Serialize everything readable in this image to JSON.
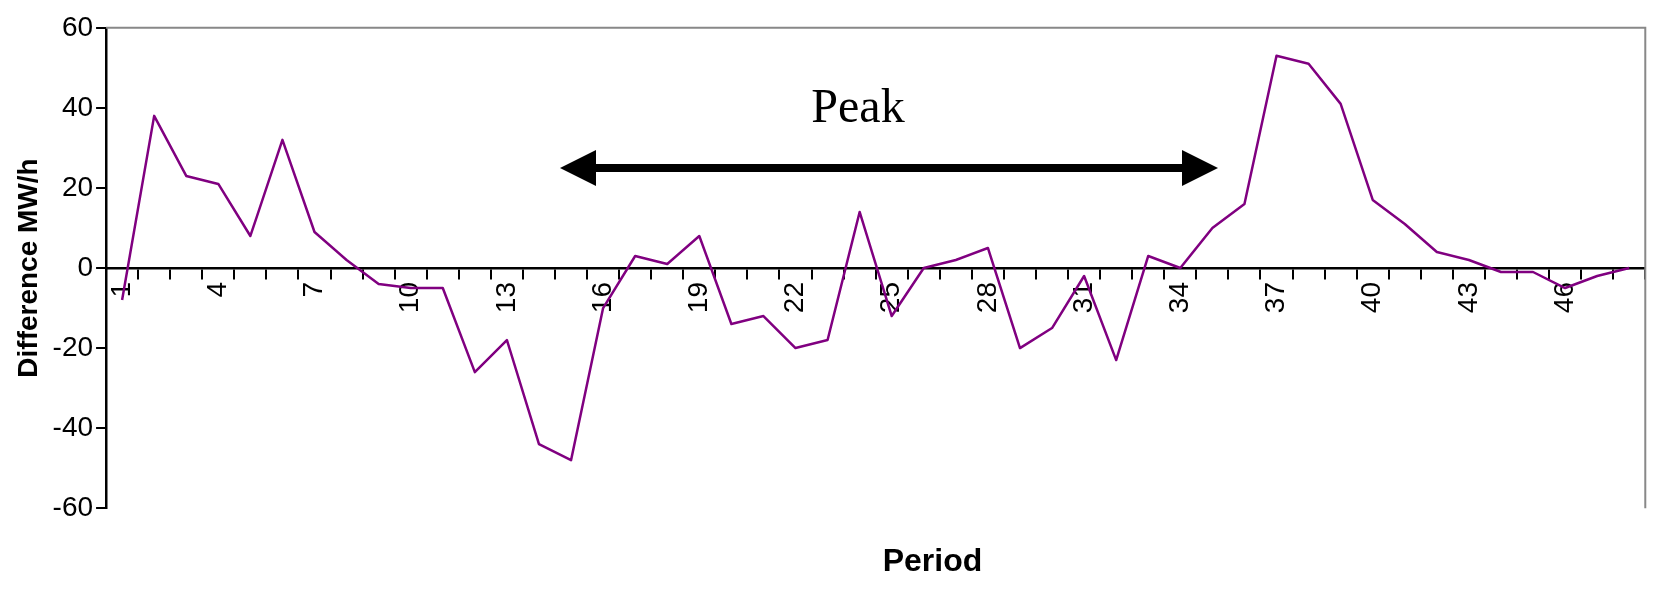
{
  "chart_data": {
    "type": "line",
    "xlabel": "Period",
    "ylabel": "Difference MW/h",
    "annotations": [
      "Peak"
    ],
    "categories": [
      "1",
      null,
      null,
      "4",
      null,
      null,
      "7",
      null,
      null,
      "10",
      null,
      null,
      "13",
      null,
      null,
      "16",
      null,
      null,
      "19",
      null,
      null,
      "22",
      null,
      null,
      "25",
      null,
      null,
      "28",
      null,
      null,
      "31",
      null,
      null,
      "34",
      null,
      null,
      "37",
      null,
      null,
      "40",
      null,
      null,
      "43",
      null,
      null,
      "46",
      null,
      null
    ],
    "series": [
      {
        "color": "#800080",
        "values": [
          -8,
          38,
          23,
          21,
          8,
          32,
          9,
          2,
          -4,
          -5,
          -5,
          -26,
          -18,
          -44,
          -48,
          -10,
          3,
          1,
          8,
          -14,
          -12,
          -20,
          -18,
          14,
          -12,
          0,
          2,
          5,
          -20,
          -15,
          -2,
          -23,
          3,
          0,
          10,
          16,
          53,
          51,
          41,
          17,
          11,
          4,
          2,
          -1,
          -1,
          -5,
          -2,
          0
        ]
      }
    ],
    "ylim": [
      -60,
      60
    ],
    "yticks": [
      -60,
      -40,
      -20,
      0,
      20,
      40,
      60
    ],
    "grid": false,
    "legend": false,
    "marker": "none",
    "line_style": "solid"
  }
}
